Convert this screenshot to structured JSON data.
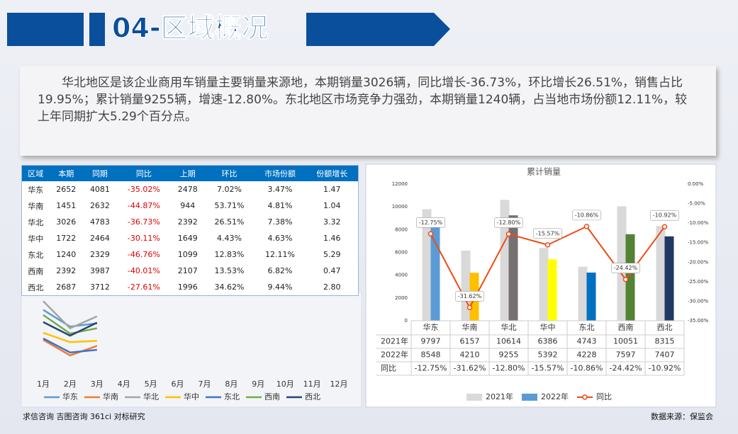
{
  "header": {
    "title": "04-区域概况"
  },
  "paragraph": "华北地区是该企业商用车销量主要销量来源地，本期销量3026辆，同比增长-36.73%，环比增长26.51%，销售占比19.95%；累计销量9255辆，增速-12.80%。东北地区市场竞争力强劲，本期销量1240辆，占当地市场份额12.11%，较上年同期扩大5.29个百分点。",
  "table": {
    "header": [
      "区域",
      "本期",
      "同期",
      "同比",
      "上期",
      "环比",
      "市场份额",
      "份额增长"
    ],
    "rows": [
      [
        "华东",
        "2652",
        "4081",
        "-35.02%",
        "2478",
        "7.02%",
        "3.47%",
        "1.47"
      ],
      [
        "华南",
        "1451",
        "2632",
        "-44.87%",
        "944",
        "53.71%",
        "4.81%",
        "1.04"
      ],
      [
        "华北",
        "3026",
        "4783",
        "-36.73%",
        "2392",
        "26.51%",
        "7.38%",
        "3.32"
      ],
      [
        "华中",
        "1722",
        "2464",
        "-30.11%",
        "1649",
        "4.43%",
        "4.63%",
        "1.46"
      ],
      [
        "东北",
        "1240",
        "2329",
        "-46.76%",
        "1099",
        "12.83%",
        "12.11%",
        "5.29"
      ],
      [
        "西南",
        "2392",
        "3987",
        "-40.01%",
        "2107",
        "13.53%",
        "6.82%",
        "0.47"
      ],
      [
        "西北",
        "2687",
        "3712",
        "-27.61%",
        "1996",
        "34.62%",
        "9.44%",
        "2.80"
      ]
    ]
  },
  "chart_data": [
    {
      "type": "line",
      "categories": [
        "1月",
        "2月",
        "3月",
        "4月",
        "5月",
        "6月",
        "7月",
        "8月",
        "9月",
        "10月",
        "11月",
        "12月"
      ],
      "ylim": [
        0,
        4000
      ],
      "legend": "bottom",
      "series": [
        {
          "name": "华东",
          "color": "#5b9bd5",
          "values": [
            3370,
            2478,
            2652,
            null,
            null,
            null,
            null,
            null,
            null,
            null,
            null,
            null
          ]
        },
        {
          "name": "华南",
          "color": "#ed7d31",
          "values": [
            1770,
            944,
            1451,
            null,
            null,
            null,
            null,
            null,
            null,
            null,
            null,
            null
          ]
        },
        {
          "name": "华北",
          "color": "#a5a5a5",
          "values": [
            3837,
            2392,
            3026,
            null,
            null,
            null,
            null,
            null,
            null,
            null,
            null,
            null
          ]
        },
        {
          "name": "华中",
          "color": "#ffc000",
          "values": [
            2150,
            1649,
            1722,
            null,
            null,
            null,
            null,
            null,
            null,
            null,
            null,
            null
          ]
        },
        {
          "name": "东北",
          "color": "#4472c4",
          "values": [
            1850,
            1099,
            1240,
            null,
            null,
            null,
            null,
            null,
            null,
            null,
            null,
            null
          ]
        },
        {
          "name": "西南",
          "color": "#70ad47",
          "values": [
            3100,
            2107,
            2392,
            null,
            null,
            null,
            null,
            null,
            null,
            null,
            null,
            null
          ]
        },
        {
          "name": "西北",
          "color": "#264478",
          "values": [
            2720,
            1996,
            2687,
            null,
            null,
            null,
            null,
            null,
            null,
            null,
            null,
            null
          ]
        }
      ]
    },
    {
      "type": "bar",
      "title": "累计销量",
      "categories": [
        "华东",
        "华南",
        "华北",
        "华中",
        "东北",
        "西南",
        "西北"
      ],
      "ylim": [
        0,
        12000
      ],
      "yticks": [
        0,
        2000,
        4000,
        6000,
        8000,
        10000,
        12000
      ],
      "y2lim": [
        -35,
        0
      ],
      "y2ticks": [
        {
          "value": 0,
          "label": "0.00%"
        },
        {
          "value": -5,
          "label": "-5.00%"
        },
        {
          "value": -10,
          "label": "-10.00%"
        },
        {
          "value": -15,
          "label": "-15.00%"
        },
        {
          "value": -20,
          "label": "-20.00%"
        },
        {
          "value": -25,
          "label": "-25.00%"
        },
        {
          "value": -30,
          "label": "-30.00%"
        },
        {
          "value": -35,
          "label": "-35.00%"
        }
      ],
      "legend": "bottom",
      "data_table": true,
      "series": [
        {
          "name": "2021年",
          "color": "#d9d9d9",
          "values": [
            9797,
            6157,
            10614,
            6386,
            4743,
            10051,
            8315
          ]
        },
        {
          "name": "2022年",
          "color": "#5b9bd5",
          "colors": [
            "#5b9bd5",
            "#ffc000",
            "#767171",
            "#ffff00",
            "#0070c0",
            "#548235",
            "#203864"
          ],
          "values": [
            8548,
            4210,
            9255,
            5392,
            4228,
            7597,
            7407
          ]
        },
        {
          "name": "同比",
          "type": "line",
          "axis": "y2",
          "color": "#f04a14",
          "values": [
            -12.75,
            -31.62,
            -12.8,
            -15.57,
            -10.86,
            -24.42,
            -10.92
          ],
          "value_labels": [
            "-12.75%",
            "-31.62%",
            "-12.80%",
            "-15.57%",
            "-10.86%",
            "-24.42%",
            "-10.92%"
          ]
        }
      ]
    }
  ],
  "footer": {
    "left": "求信咨询 吉图咨询 361ci 对标研究",
    "right": "数据来源：保监会"
  }
}
